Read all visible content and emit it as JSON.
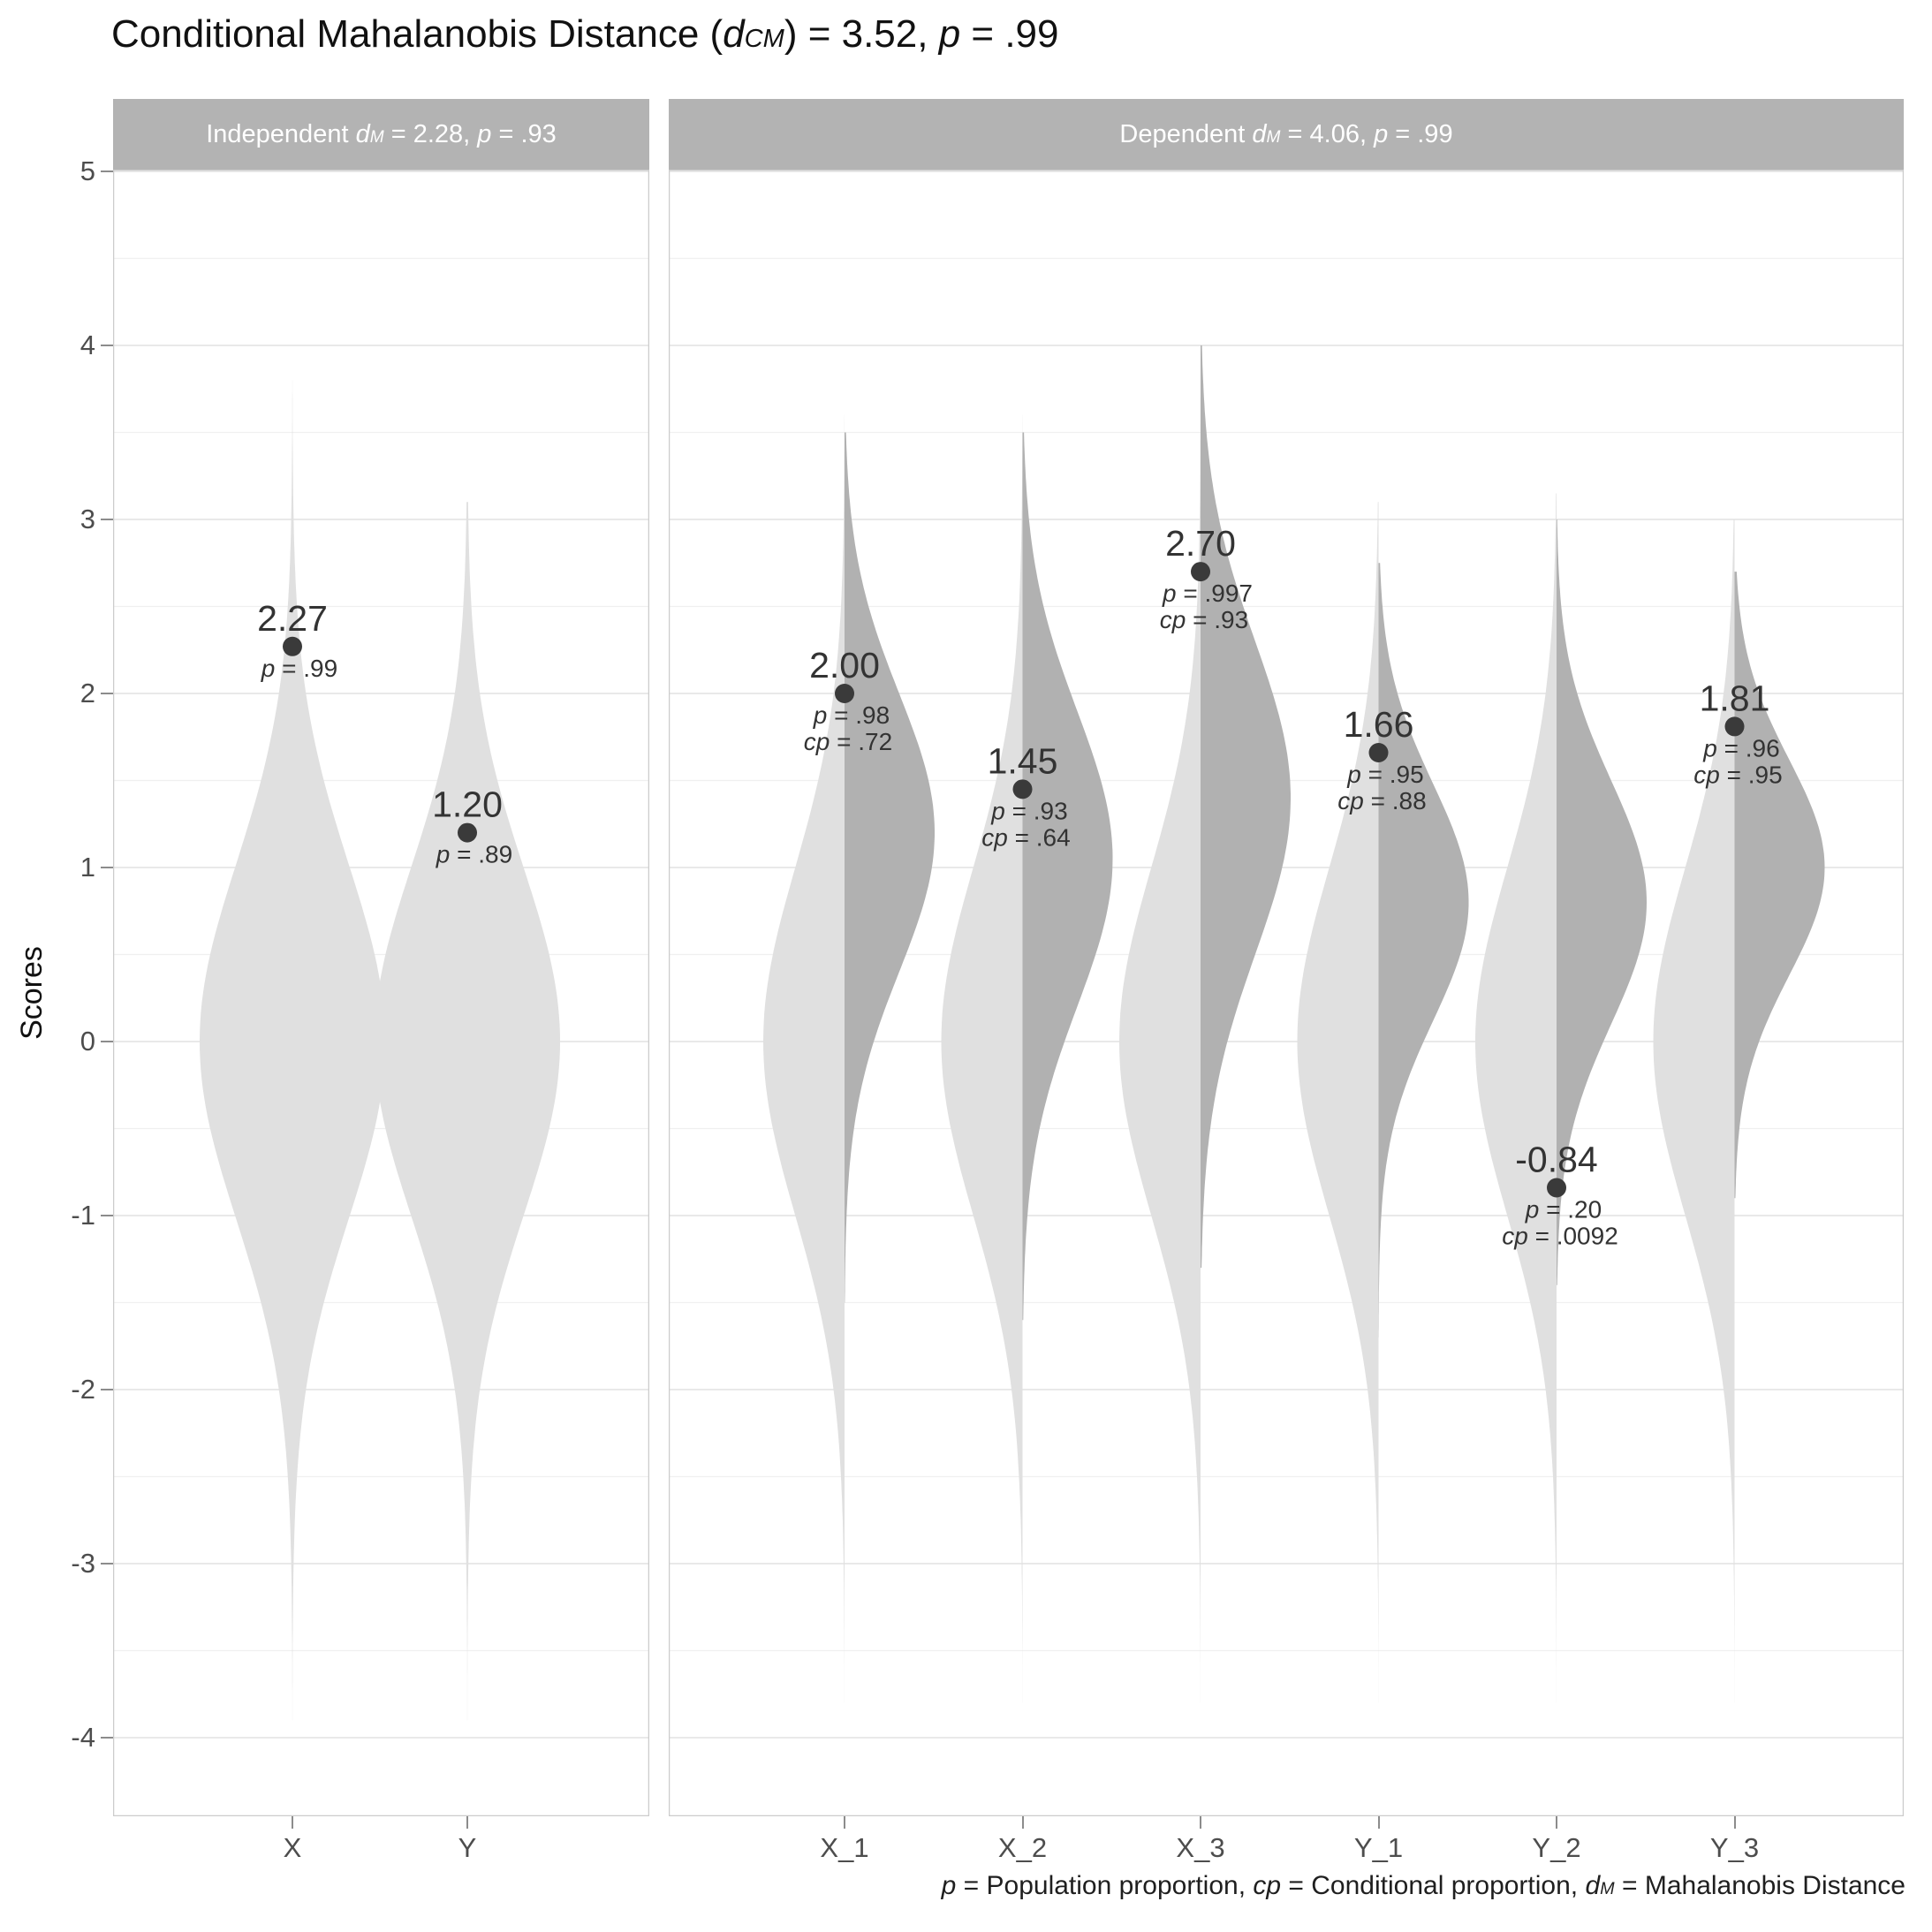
{
  "chart_data": {
    "type": "violin",
    "title_segments": [
      {
        "t": "Conditional Mahalanobis Distance ("
      },
      {
        "t": "d",
        "i": 1
      },
      {
        "t": "CM",
        "i": 1,
        "sub": 1
      },
      {
        "t": ") = 3.52, "
      },
      {
        "t": "p",
        "i": 1
      },
      {
        "t": " = .99"
      }
    ],
    "caption_segments": [
      {
        "t": "p",
        "i": 1
      },
      {
        "t": " = Population proportion, "
      },
      {
        "t": "cp",
        "i": 1
      },
      {
        "t": " = Conditional proportion, "
      },
      {
        "t": "d",
        "i": 1
      },
      {
        "t": "M",
        "i": 1,
        "sub": 1
      },
      {
        "t": " = Mahalanobis Distance"
      }
    ],
    "ylabel": "Scores",
    "y_ticks": [
      5,
      4,
      3,
      2,
      1,
      0,
      -1,
      -2,
      -3,
      -4
    ],
    "y_minor_ticks": [
      4.5,
      3.5,
      2.5,
      1.5,
      0.5,
      -0.5,
      -1.5,
      -2.5,
      -3.5
    ],
    "ylim": [
      -4.45,
      5.01
    ],
    "grid": true,
    "legend": "none",
    "panels": [
      {
        "id": "independent",
        "strip_segments": [
          {
            "t": "Independent "
          },
          {
            "t": "d",
            "i": 1
          },
          {
            "t": "M",
            "i": 1,
            "sub": 1
          },
          {
            "t": " = 2.28, "
          },
          {
            "t": "p",
            "i": 1
          },
          {
            "t": " = .93"
          }
        ],
        "categories": [
          "X",
          "Y"
        ],
        "series": [
          {
            "category": "X",
            "point": 2.27,
            "point_label": "2.27",
            "p": ".99",
            "marginal_density": {
              "mean": 0,
              "sd": 1.02,
              "min": -3.9,
              "max": 3.8
            }
          },
          {
            "category": "Y",
            "point": 1.2,
            "point_label": "1.20",
            "p": ".89",
            "marginal_density": {
              "mean": 0,
              "sd": 1.0,
              "min": -3.9,
              "max": 3.1
            }
          }
        ]
      },
      {
        "id": "dependent",
        "strip_segments": [
          {
            "t": "Dependent "
          },
          {
            "t": "d",
            "i": 1
          },
          {
            "t": "M",
            "i": 1,
            "sub": 1
          },
          {
            "t": " = 4.06, "
          },
          {
            "t": "p",
            "i": 1
          },
          {
            "t": " = .99"
          }
        ],
        "categories": [
          "X_1",
          "X_2",
          "X_3",
          "Y_1",
          "Y_2",
          "Y_3"
        ],
        "series": [
          {
            "category": "X_1",
            "point": 2.0,
            "point_label": "2.00",
            "p": ".98",
            "cp": ".72",
            "marginal_density": {
              "mean": 0,
              "sd": 1.0,
              "min": -3.8,
              "max": 3.6
            },
            "conditional_density": {
              "mean": 1.2,
              "sd": 0.8,
              "min": -1.5,
              "max": 3.5
            }
          },
          {
            "category": "X_2",
            "point": 1.45,
            "point_label": "1.45",
            "p": ".93",
            "cp": ".64",
            "marginal_density": {
              "mean": 0,
              "sd": 1.0,
              "min": -3.8,
              "max": 3.6
            },
            "conditional_density": {
              "mean": 1.05,
              "sd": 0.85,
              "min": -1.6,
              "max": 3.5
            }
          },
          {
            "category": "X_3",
            "point": 2.7,
            "point_label": "2.70",
            "p": ".997",
            "cp": ".93",
            "marginal_density": {
              "mean": 0,
              "sd": 1.0,
              "min": -3.8,
              "max": 3.7
            },
            "conditional_density": {
              "mean": 1.4,
              "sd": 0.9,
              "min": -1.3,
              "max": 4.0
            }
          },
          {
            "category": "Y_1",
            "point": 1.66,
            "point_label": "1.66",
            "p": ".95",
            "cp": ".88",
            "marginal_density": {
              "mean": 0,
              "sd": 1.0,
              "min": -3.8,
              "max": 3.1
            },
            "conditional_density": {
              "mean": 0.8,
              "sd": 0.68,
              "min": -1.7,
              "max": 2.75
            }
          },
          {
            "category": "Y_2",
            "point": -0.84,
            "point_label": "-0.84",
            "p": ".20",
            "cp": ".0092",
            "marginal_density": {
              "mean": 0,
              "sd": 1.0,
              "min": -3.8,
              "max": 3.15
            },
            "conditional_density": {
              "mean": 0.8,
              "sd": 0.7,
              "min": -1.4,
              "max": 3.0
            }
          },
          {
            "category": "Y_3",
            "point": 1.81,
            "point_label": "1.81",
            "p": ".96",
            "cp": ".95",
            "marginal_density": {
              "mean": 0,
              "sd": 1.0,
              "min": -3.8,
              "max": 3.0
            },
            "conditional_density": {
              "mean": 1.0,
              "sd": 0.62,
              "min": -0.9,
              "max": 2.7
            }
          }
        ]
      }
    ],
    "colors": {
      "violin_light": "#e0e0e0",
      "violin_dark": "#b1b1b1",
      "strip_bg": "#b3b3b3",
      "strip_text": "#ffffff",
      "point": "#3a3a3a",
      "label_text": "#333333",
      "grid_major": "#e2e2e2",
      "grid_minor": "#f0f0f0",
      "axis_text": "#4d4d4d",
      "panel_border": "#cccccc"
    }
  }
}
